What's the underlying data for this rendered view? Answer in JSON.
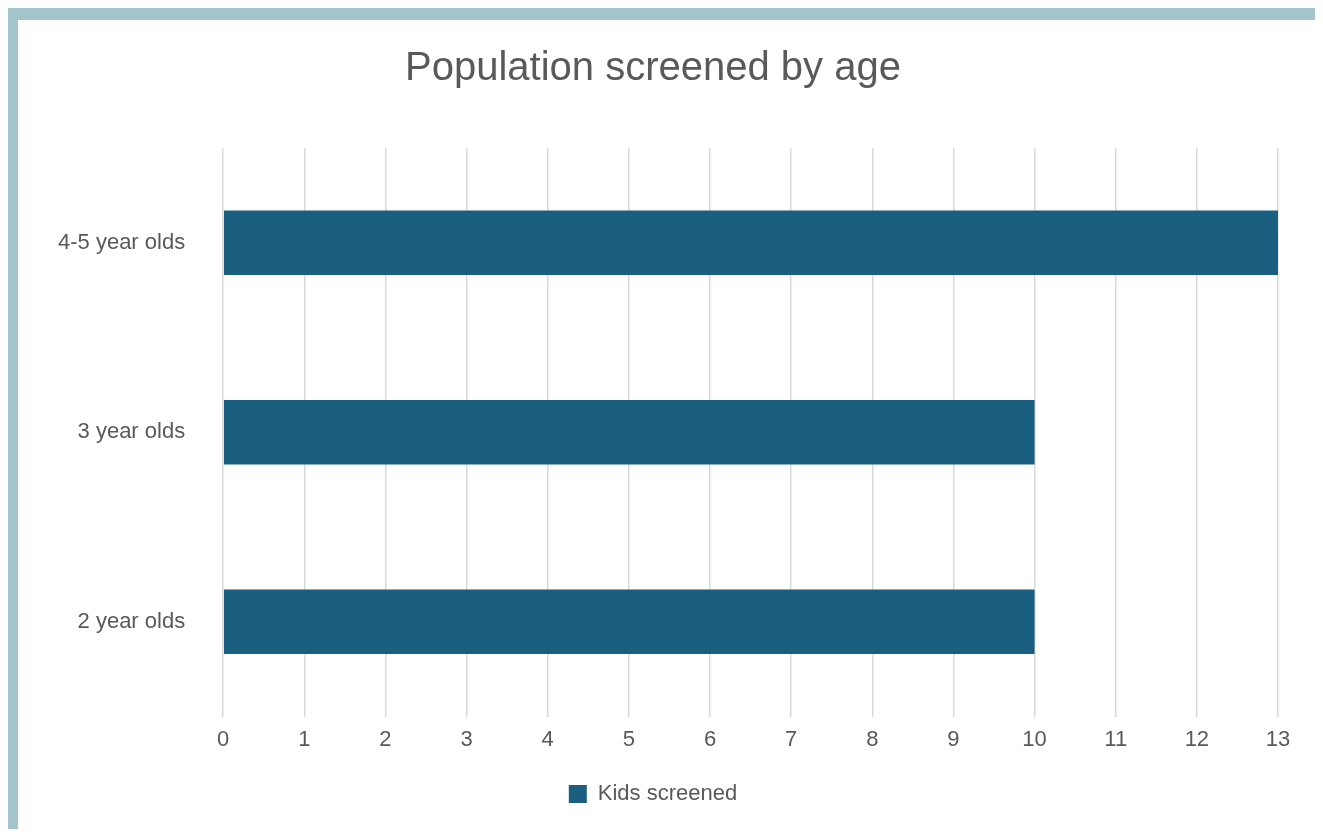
{
  "chart_data": {
    "type": "bar",
    "orientation": "horizontal",
    "title": "Population screened by age",
    "categories": [
      "4-5 year olds",
      "3 year olds",
      "2 year olds"
    ],
    "series": [
      {
        "name": "Kids screened",
        "color": "#1a5e80",
        "values": [
          13,
          10,
          10
        ]
      }
    ],
    "xlim": [
      0,
      13
    ],
    "xticks": [
      0,
      1,
      2,
      3,
      4,
      5,
      6,
      7,
      8,
      9,
      10,
      11,
      12,
      13
    ],
    "grid": "x",
    "legend": "bottom"
  }
}
